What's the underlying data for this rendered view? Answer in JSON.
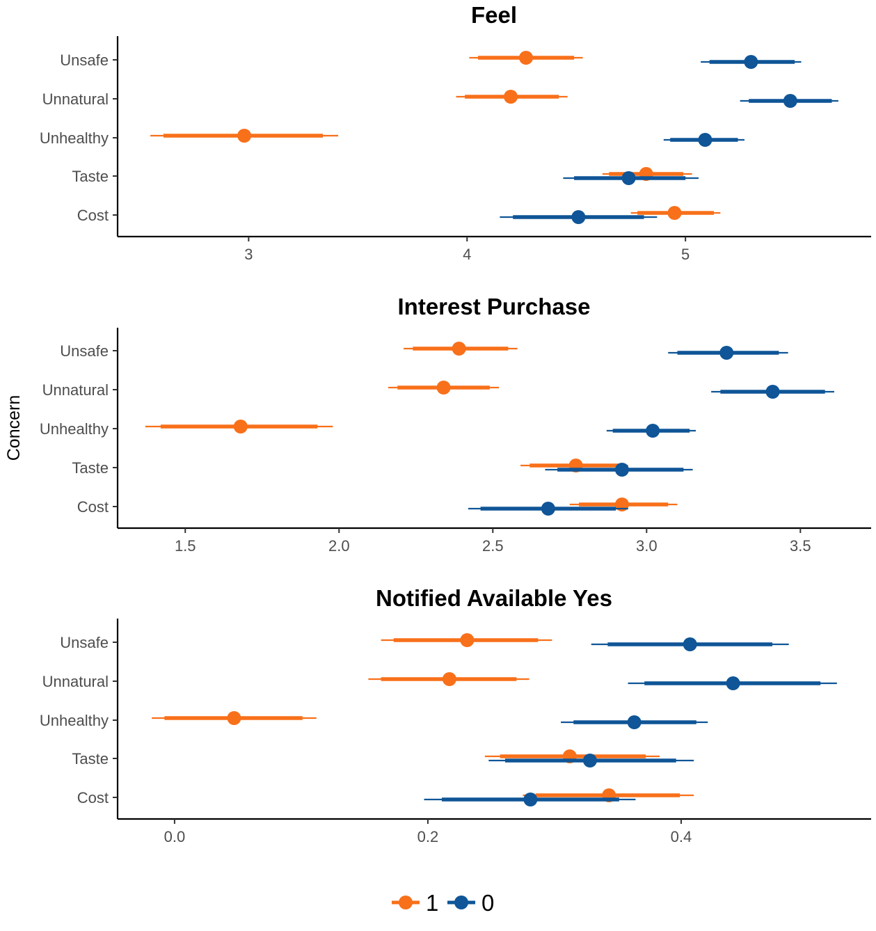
{
  "colors": {
    "group_1": "#f8701a",
    "group_0": "#0f5597",
    "axis": "#000000",
    "tick_text": "#4d4d4d"
  },
  "ylabel": "Concern",
  "legend": {
    "placement": "bottom",
    "items": [
      {
        "label": "1",
        "color": "#f8701a"
      },
      {
        "label": "0",
        "color": "#0f5597"
      }
    ]
  },
  "chart_data": [
    {
      "type": "scatter",
      "subtype": "point-interval",
      "title": "Feel",
      "categories": [
        "Unsafe",
        "Unnatural",
        "Unhealthy",
        "Taste",
        "Cost"
      ],
      "xlim": [
        2.4,
        5.85
      ],
      "xticks": [
        3,
        4,
        5
      ],
      "xtick_labels": [
        "3",
        "4",
        "5"
      ],
      "series": [
        {
          "name": "1",
          "color": "#f8701a",
          "points": [
            {
              "category": "Unsafe",
              "x": 4.27,
              "inner": [
                4.05,
                4.49
              ],
              "outer": [
                4.01,
                4.53
              ]
            },
            {
              "category": "Unnatural",
              "x": 4.2,
              "inner": [
                3.99,
                4.42
              ],
              "outer": [
                3.95,
                4.46
              ]
            },
            {
              "category": "Unhealthy",
              "x": 2.98,
              "inner": [
                2.61,
                3.34
              ],
              "outer": [
                2.55,
                3.41
              ]
            },
            {
              "category": "Taste",
              "x": 4.82,
              "inner": [
                4.65,
                4.99
              ],
              "outer": [
                4.62,
                5.03
              ]
            },
            {
              "category": "Cost",
              "x": 4.95,
              "inner": [
                4.78,
                5.13
              ],
              "outer": [
                4.75,
                5.16
              ]
            }
          ]
        },
        {
          "name": "0",
          "color": "#0f5597",
          "points": [
            {
              "category": "Unsafe",
              "x": 5.3,
              "inner": [
                5.11,
                5.5
              ],
              "outer": [
                5.07,
                5.53
              ]
            },
            {
              "category": "Unnatural",
              "x": 5.48,
              "inner": [
                5.29,
                5.67
              ],
              "outer": [
                5.25,
                5.7
              ]
            },
            {
              "category": "Unhealthy",
              "x": 5.09,
              "inner": [
                4.93,
                5.24
              ],
              "outer": [
                4.9,
                5.27
              ]
            },
            {
              "category": "Taste",
              "x": 4.74,
              "inner": [
                4.49,
                5.0
              ],
              "outer": [
                4.44,
                5.06
              ]
            },
            {
              "category": "Cost",
              "x": 4.51,
              "inner": [
                4.21,
                4.81
              ],
              "outer": [
                4.15,
                4.87
              ]
            }
          ]
        }
      ]
    },
    {
      "type": "scatter",
      "subtype": "point-interval",
      "title": "Interest Purchase",
      "categories": [
        "Unsafe",
        "Unnatural",
        "Unhealthy",
        "Taste",
        "Cost"
      ],
      "xlim": [
        1.28,
        3.73
      ],
      "xticks": [
        1.5,
        2.0,
        2.5,
        3.0,
        3.5
      ],
      "xtick_labels": [
        "1.5",
        "2.0",
        "2.5",
        "3.0",
        "3.5"
      ],
      "series": [
        {
          "name": "1",
          "color": "#f8701a",
          "points": [
            {
              "category": "Unsafe",
              "x": 2.39,
              "inner": [
                2.24,
                2.55
              ],
              "outer": [
                2.21,
                2.58
              ]
            },
            {
              "category": "Unnatural",
              "x": 2.34,
              "inner": [
                2.19,
                2.49
              ],
              "outer": [
                2.16,
                2.52
              ]
            },
            {
              "category": "Unhealthy",
              "x": 1.68,
              "inner": [
                1.42,
                1.93
              ],
              "outer": [
                1.37,
                1.98
              ]
            },
            {
              "category": "Taste",
              "x": 2.77,
              "inner": [
                2.62,
                2.91
              ],
              "outer": [
                2.59,
                2.94
              ]
            },
            {
              "category": "Cost",
              "x": 2.92,
              "inner": [
                2.78,
                3.07
              ],
              "outer": [
                2.75,
                3.1
              ]
            }
          ]
        },
        {
          "name": "0",
          "color": "#0f5597",
          "points": [
            {
              "category": "Unsafe",
              "x": 3.26,
              "inner": [
                3.1,
                3.43
              ],
              "outer": [
                3.07,
                3.46
              ]
            },
            {
              "category": "Unnatural",
              "x": 3.41,
              "inner": [
                3.24,
                3.58
              ],
              "outer": [
                3.21,
                3.61
              ]
            },
            {
              "category": "Unhealthy",
              "x": 3.02,
              "inner": [
                2.89,
                3.14
              ],
              "outer": [
                2.87,
                3.16
              ]
            },
            {
              "category": "Taste",
              "x": 2.92,
              "inner": [
                2.71,
                3.12
              ],
              "outer": [
                2.67,
                3.15
              ]
            },
            {
              "category": "Cost",
              "x": 2.68,
              "inner": [
                2.46,
                2.9
              ],
              "outer": [
                2.42,
                2.94
              ]
            }
          ]
        }
      ]
    },
    {
      "type": "scatter",
      "subtype": "point-interval",
      "title": "Notified Available Yes",
      "categories": [
        "Unsafe",
        "Unnatural",
        "Unhealthy",
        "Taste",
        "Cost"
      ],
      "xlim": [
        -0.045,
        0.55
      ],
      "xticks": [
        0.0,
        0.2,
        0.4
      ],
      "xtick_labels": [
        "0.0",
        "0.2",
        "0.4"
      ],
      "series": [
        {
          "name": "1",
          "color": "#f8701a",
          "points": [
            {
              "category": "Unsafe",
              "x": 0.231,
              "inner": [
                0.173,
                0.287
              ],
              "outer": [
                0.163,
                0.298
              ]
            },
            {
              "category": "Unnatural",
              "x": 0.217,
              "inner": [
                0.163,
                0.27
              ],
              "outer": [
                0.153,
                0.28
              ]
            },
            {
              "category": "Unhealthy",
              "x": 0.047,
              "inner": [
                -0.008,
                0.101
              ],
              "outer": [
                -0.018,
                0.112
              ]
            },
            {
              "category": "Taste",
              "x": 0.312,
              "inner": [
                0.257,
                0.372
              ],
              "outer": [
                0.245,
                0.383
              ]
            },
            {
              "category": "Cost",
              "x": 0.343,
              "inner": [
                0.285,
                0.399
              ],
              "outer": [
                0.275,
                0.41
              ]
            }
          ]
        },
        {
          "name": "0",
          "color": "#0f5597",
          "points": [
            {
              "category": "Unsafe",
              "x": 0.407,
              "inner": [
                0.342,
                0.472
              ],
              "outer": [
                0.329,
                0.485
              ]
            },
            {
              "category": "Unnatural",
              "x": 0.441,
              "inner": [
                0.371,
                0.51
              ],
              "outer": [
                0.358,
                0.523
              ]
            },
            {
              "category": "Unhealthy",
              "x": 0.363,
              "inner": [
                0.315,
                0.412
              ],
              "outer": [
                0.305,
                0.421
              ]
            },
            {
              "category": "Taste",
              "x": 0.328,
              "inner": [
                0.261,
                0.396
              ],
              "outer": [
                0.248,
                0.41
              ]
            },
            {
              "category": "Cost",
              "x": 0.281,
              "inner": [
                0.211,
                0.351
              ],
              "outer": [
                0.197,
                0.364
              ]
            }
          ]
        }
      ]
    }
  ]
}
